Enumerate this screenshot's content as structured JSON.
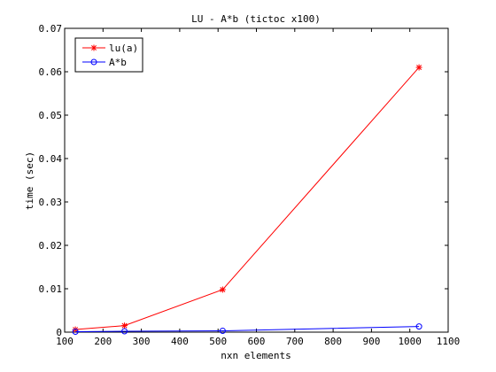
{
  "chart_data": {
    "type": "line",
    "title": "LU - A*b (tictoc x100)",
    "xlabel": "nxn elements",
    "ylabel": "time (sec)",
    "xlim": [
      100,
      1100
    ],
    "ylim": [
      0,
      0.07
    ],
    "xticks": [
      100,
      200,
      300,
      400,
      500,
      600,
      700,
      800,
      900,
      1000,
      1100
    ],
    "yticks": [
      0,
      0.01,
      0.02,
      0.03,
      0.04,
      0.05,
      0.06,
      0.07
    ],
    "grid": false,
    "legend_position": "top-left",
    "series": [
      {
        "name": "lu(a)",
        "color": "#ff0000",
        "marker": "star",
        "x": [
          128,
          256,
          512,
          1024
        ],
        "y": [
          0.0006,
          0.0015,
          0.0098,
          0.061
        ]
      },
      {
        "name": "A*b",
        "color": "#0000ff",
        "marker": "circle",
        "x": [
          128,
          256,
          512,
          1024
        ],
        "y": [
          0.0001,
          0.0002,
          0.0003,
          0.0013
        ]
      }
    ]
  }
}
